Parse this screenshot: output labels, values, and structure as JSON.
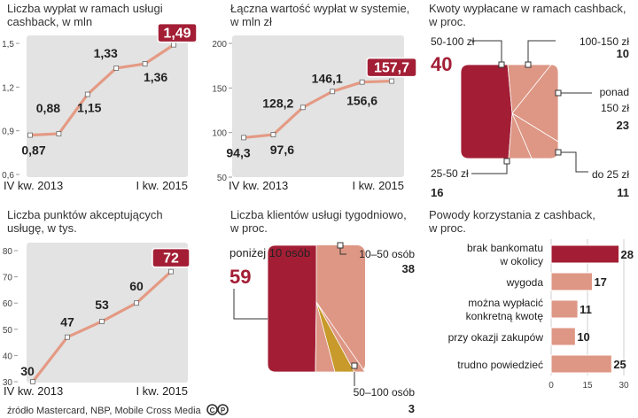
{
  "colors": {
    "line": "#e49a84",
    "dark_red": "#a31e35",
    "salmon": "#de9785",
    "gold": "#c79a2b",
    "plot_bg": "#e3e3e3",
    "text": "#222222"
  },
  "source": "źródło Mastercard, NBP, Mobile Cross Media",
  "chart_data": [
    {
      "id": "payouts",
      "type": "line",
      "title": "Liczba wypłat w ramach usługi cashback, w mln",
      "title_lines": [
        "Liczba wypłat w ramach usługi",
        "cashback, w mln"
      ],
      "x_labels": [
        "IV kw. 2013",
        "I kw. 2015"
      ],
      "values": [
        0.87,
        0.88,
        1.15,
        1.33,
        1.36,
        1.49
      ],
      "value_labels": [
        "0,87",
        "0,88",
        "1,15",
        "1,33",
        "1,36",
        "1,49"
      ],
      "highlight_last": true,
      "ylim": [
        0.6,
        1.5
      ],
      "yticks": [
        0.6,
        0.9,
        1.2,
        1.5
      ],
      "ytick_labels": [
        "0,6",
        "0,9",
        "1,2",
        "1,5"
      ]
    },
    {
      "id": "total_value",
      "type": "line",
      "title": "Łączna wartość wypłat w systemie, w mln zł",
      "title_lines": [
        "Łączna wartość wypłat w systemie,",
        "w mln zł"
      ],
      "x_labels": [
        "IV kw. 2013",
        "I kw. 2015"
      ],
      "values": [
        94.3,
        97.6,
        128.2,
        146.1,
        156.6,
        157.7
      ],
      "value_labels": [
        "94,3",
        "97,6",
        "128,2",
        "146,1",
        "156,6",
        "157,7"
      ],
      "highlight_last": true,
      "ylim": [
        50,
        200
      ],
      "yticks": [
        50,
        100,
        150,
        200
      ],
      "ytick_labels": [
        "50",
        "100",
        "150",
        "200"
      ]
    },
    {
      "id": "amounts",
      "type": "pie",
      "title": "Kwoty wypłacane w ramach cashback, w proc.",
      "title_lines": [
        "Kwoty wypłacane w ramach cashback,",
        "w proc."
      ],
      "slices": [
        {
          "label": "50-100 zł",
          "value": 40
        },
        {
          "label": "100-150 zł",
          "value": 10
        },
        {
          "label": "ponad 150 zł",
          "value": 23
        },
        {
          "label": "do 25 zł",
          "value": 11
        },
        {
          "label": "25-50 zł",
          "value": 16
        }
      ],
      "label_lines": {
        "ponad 150 zł": [
          "ponad",
          "150 zł"
        ]
      }
    },
    {
      "id": "acceptance_points",
      "type": "line",
      "title": "Liczba punktów akceptujących usługę, w tys.",
      "title_lines": [
        "Liczba punktów akceptujących",
        "usługę, w tys."
      ],
      "x_labels": [
        "IV kw. 2013",
        "I kw. 2015"
      ],
      "values": [
        30,
        47,
        53,
        60,
        72
      ],
      "value_labels": [
        "30",
        "47",
        "53",
        "60",
        "72"
      ],
      "highlight_last": true,
      "ylim": [
        30,
        80
      ],
      "yticks": [
        30,
        40,
        50,
        60,
        70,
        80
      ],
      "ytick_labels": [
        "30",
        "40",
        "50",
        "60",
        "70",
        "80"
      ]
    },
    {
      "id": "clients_weekly",
      "type": "pie",
      "title": "Liczba klientów usługi tygodniowo, w proc.",
      "title_lines": [
        "Liczba klientów usługi tygodniowo,",
        "w proc."
      ],
      "slices": [
        {
          "label": "poniżej 10 osób",
          "value": 59
        },
        {
          "label": "10–50 osób",
          "value": 38
        },
        {
          "label": "50–100 osób",
          "value": 3
        }
      ]
    },
    {
      "id": "reasons",
      "type": "bar",
      "title": "Powody korzystania z cashback, w proc.",
      "title_lines": [
        "Powody korzystania z cashback,",
        "w proc."
      ],
      "categories": [
        "brak bankomatu w okolicy",
        "wygoda",
        "można wypłacić konkretną kwotę",
        "przy okazji zakupów",
        "trudno powiedzieć"
      ],
      "category_lines": [
        [
          "brak bankomatu",
          "w okolicy"
        ],
        [
          "wygoda"
        ],
        [
          "można wypłacić",
          "konkretną kwotę"
        ],
        [
          "przy okazji zakupów"
        ],
        [
          "trudno powiedzieć"
        ]
      ],
      "values": [
        28,
        17,
        11,
        10,
        25
      ],
      "xlim": [
        0,
        30
      ],
      "xticks": [
        0,
        15,
        30
      ],
      "xtick_labels": [
        "0",
        "15",
        "30"
      ]
    }
  ]
}
